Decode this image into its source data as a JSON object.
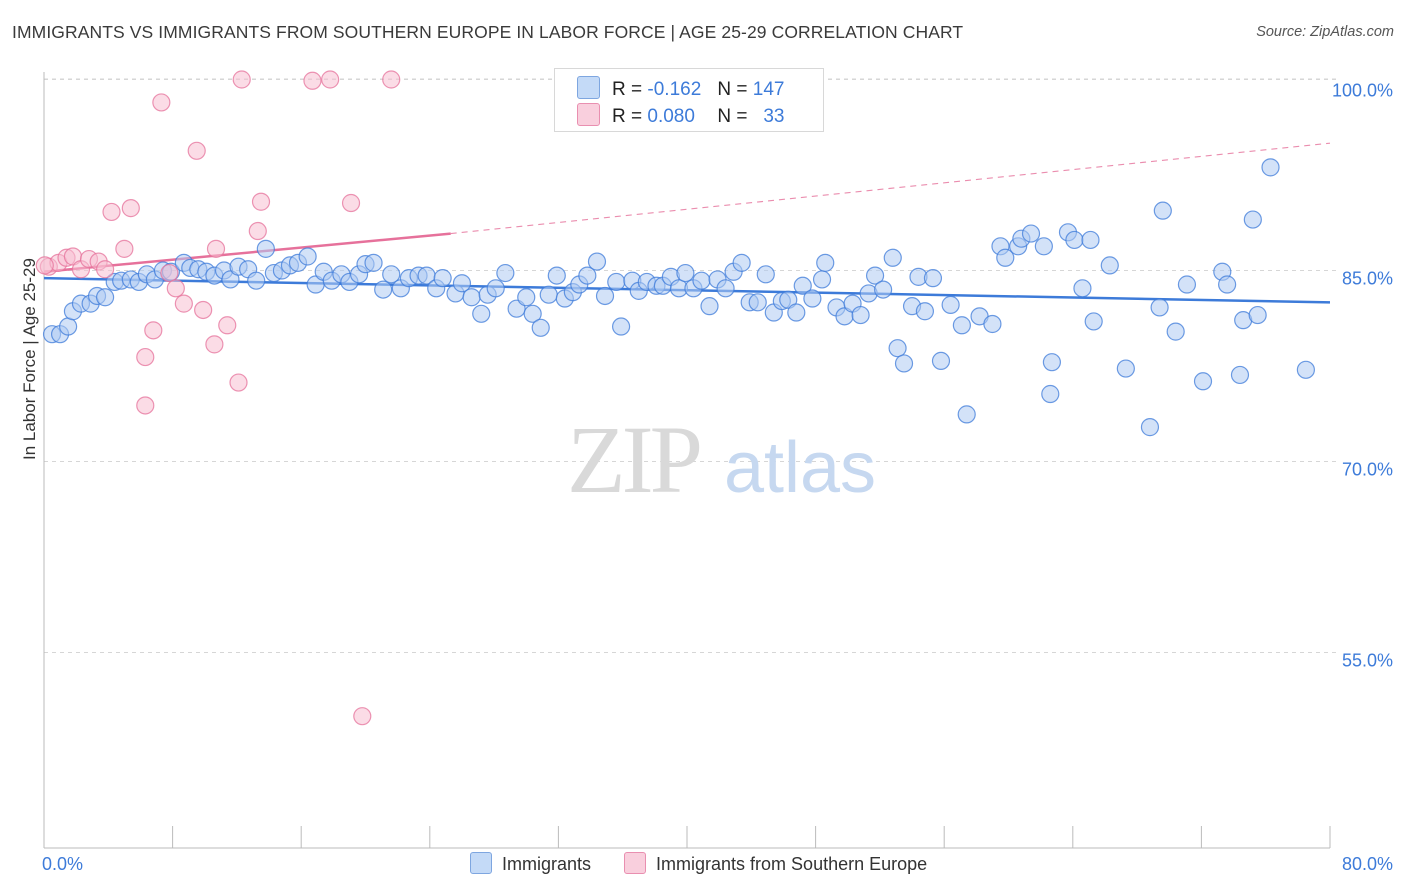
{
  "title": "IMMIGRANTS VS IMMIGRANTS FROM SOUTHERN EUROPE IN LABOR FORCE | AGE 25-29 CORRELATION CHART",
  "source": "Source: ZipAtlas.com",
  "watermark": {
    "zip": "ZIP",
    "atlas": "atlas"
  },
  "legend": {
    "rows": [
      {
        "r_label": "R =",
        "r_value": "-0.162",
        "n_label": "N =",
        "n_value": "147",
        "color": "#aecbf3"
      },
      {
        "r_label": "R =",
        "r_value": "0.080",
        "n_label": "N =",
        "n_value": "33",
        "color": "#f7bfd2"
      }
    ]
  },
  "bottom_legend": [
    "Immigrants",
    "Immigrants from Southern Europe"
  ],
  "chart_data": {
    "type": "scatter",
    "title": "IMMIGRANTS VS IMMIGRANTS FROM SOUTHERN EUROPE IN LABOR FORCE | AGE 25-29 CORRELATION CHART",
    "xlabel": "",
    "ylabel": "In Labor Force | Age 25-29",
    "xlim": [
      0,
      80
    ],
    "ylim": [
      40,
      102
    ],
    "x_tick_labels": [
      "0.0%",
      "80.0%"
    ],
    "y_ticks": [
      55,
      70,
      85,
      100
    ],
    "y_tick_labels": [
      "55.0%",
      "70.0%",
      "85.0%",
      "100.0%"
    ],
    "grid": true,
    "legend_position": "top-center",
    "series": [
      {
        "name": "Immigrants",
        "color": "#3d7bd9",
        "fill": "#aecbf3",
        "trend": {
          "x0": 0,
          "y0": 84.4,
          "x1": 80,
          "y1": 82.5
        },
        "points": [
          [
            0.5,
            80.0
          ],
          [
            1.0,
            80.0
          ],
          [
            1.5,
            80.6
          ],
          [
            1.8,
            81.8
          ],
          [
            2.3,
            82.4
          ],
          [
            2.9,
            82.4
          ],
          [
            3.3,
            83.0
          ],
          [
            3.8,
            82.9
          ],
          [
            4.4,
            84.1
          ],
          [
            4.8,
            84.2
          ],
          [
            5.4,
            84.3
          ],
          [
            5.9,
            84.1
          ],
          [
            6.4,
            84.7
          ],
          [
            6.9,
            84.3
          ],
          [
            7.4,
            85.0
          ],
          [
            7.9,
            84.9
          ],
          [
            8.7,
            85.6
          ],
          [
            9.1,
            85.2
          ],
          [
            9.6,
            85.1
          ],
          [
            10.1,
            84.9
          ],
          [
            10.6,
            84.6
          ],
          [
            11.2,
            85.0
          ],
          [
            11.6,
            84.3
          ],
          [
            12.1,
            85.3
          ],
          [
            12.7,
            85.1
          ],
          [
            13.2,
            84.2
          ],
          [
            13.8,
            86.7
          ],
          [
            14.3,
            84.8
          ],
          [
            14.8,
            85.0
          ],
          [
            15.3,
            85.4
          ],
          [
            15.8,
            85.6
          ],
          [
            16.4,
            86.1
          ],
          [
            16.9,
            83.9
          ],
          [
            17.4,
            84.9
          ],
          [
            17.9,
            84.2
          ],
          [
            18.5,
            84.7
          ],
          [
            19.0,
            84.1
          ],
          [
            19.6,
            84.7
          ],
          [
            20.0,
            85.5
          ],
          [
            20.5,
            85.6
          ],
          [
            21.1,
            83.5
          ],
          [
            21.6,
            84.7
          ],
          [
            22.2,
            83.6
          ],
          [
            22.7,
            84.4
          ],
          [
            23.3,
            84.6
          ],
          [
            23.8,
            84.6
          ],
          [
            24.4,
            83.6
          ],
          [
            24.8,
            84.4
          ],
          [
            25.6,
            83.2
          ],
          [
            26.0,
            84.0
          ],
          [
            26.6,
            82.9
          ],
          [
            27.2,
            81.6
          ],
          [
            27.6,
            83.1
          ],
          [
            28.1,
            83.6
          ],
          [
            28.7,
            84.8
          ],
          [
            29.4,
            82.0
          ],
          [
            30.0,
            82.9
          ],
          [
            30.4,
            81.6
          ],
          [
            30.9,
            80.5
          ],
          [
            31.4,
            83.1
          ],
          [
            31.9,
            84.6
          ],
          [
            32.4,
            82.8
          ],
          [
            32.9,
            83.3
          ],
          [
            33.3,
            83.9
          ],
          [
            33.8,
            84.6
          ],
          [
            34.4,
            85.7
          ],
          [
            34.9,
            83.0
          ],
          [
            35.6,
            84.1
          ],
          [
            35.9,
            80.6
          ],
          [
            36.6,
            84.2
          ],
          [
            37.0,
            83.4
          ],
          [
            37.5,
            84.1
          ],
          [
            38.1,
            83.8
          ],
          [
            38.5,
            83.8
          ],
          [
            39.0,
            84.5
          ],
          [
            39.5,
            83.6
          ],
          [
            39.9,
            84.8
          ],
          [
            40.4,
            83.6
          ],
          [
            40.9,
            84.2
          ],
          [
            41.4,
            82.2
          ],
          [
            41.9,
            84.3
          ],
          [
            42.4,
            83.6
          ],
          [
            42.9,
            84.9
          ],
          [
            43.4,
            85.6
          ],
          [
            43.9,
            82.5
          ],
          [
            44.4,
            82.5
          ],
          [
            44.9,
            84.7
          ],
          [
            45.4,
            81.7
          ],
          [
            45.9,
            82.6
          ],
          [
            46.3,
            82.7
          ],
          [
            46.8,
            81.7
          ],
          [
            47.2,
            83.8
          ],
          [
            47.8,
            82.8
          ],
          [
            48.4,
            84.3
          ],
          [
            48.6,
            85.6
          ],
          [
            49.3,
            82.1
          ],
          [
            49.8,
            81.4
          ],
          [
            50.3,
            82.4
          ],
          [
            50.8,
            81.5
          ],
          [
            51.3,
            83.2
          ],
          [
            51.7,
            84.6
          ],
          [
            52.2,
            83.5
          ],
          [
            52.8,
            86.0
          ],
          [
            53.1,
            78.9
          ],
          [
            53.5,
            77.7
          ],
          [
            54.0,
            82.2
          ],
          [
            54.4,
            84.5
          ],
          [
            54.8,
            81.8
          ],
          [
            55.3,
            84.4
          ],
          [
            55.8,
            77.9
          ],
          [
            56.4,
            82.3
          ],
          [
            57.1,
            80.7
          ],
          [
            57.4,
            73.7
          ],
          [
            58.2,
            81.4
          ],
          [
            59.0,
            80.8
          ],
          [
            59.5,
            86.9
          ],
          [
            59.8,
            86.0
          ],
          [
            60.6,
            86.9
          ],
          [
            60.8,
            87.5
          ],
          [
            61.4,
            87.9
          ],
          [
            62.2,
            86.9
          ],
          [
            62.7,
            77.8
          ],
          [
            62.6,
            75.3
          ],
          [
            63.7,
            88.0
          ],
          [
            64.1,
            87.4
          ],
          [
            64.6,
            83.6
          ],
          [
            65.1,
            87.4
          ],
          [
            65.3,
            81.0
          ],
          [
            66.3,
            85.4
          ],
          [
            67.3,
            77.3
          ],
          [
            68.8,
            72.7
          ],
          [
            69.4,
            82.1
          ],
          [
            69.6,
            89.7
          ],
          [
            70.4,
            80.2
          ],
          [
            71.1,
            83.9
          ],
          [
            72.1,
            76.3
          ],
          [
            73.3,
            84.9
          ],
          [
            73.6,
            83.9
          ],
          [
            74.4,
            76.8
          ],
          [
            74.6,
            81.1
          ],
          [
            75.2,
            89.0
          ],
          [
            75.5,
            81.5
          ],
          [
            76.3,
            93.1
          ],
          [
            78.5,
            77.2
          ]
        ]
      },
      {
        "name": "Immigrants from Southern Europe",
        "color": "#e6719b",
        "fill": "#f7bfd2",
        "trend": {
          "x0": 0,
          "y0": 84.9,
          "x1": 25.3,
          "y1": 87.9
        },
        "trend_extension": {
          "x0": 25.3,
          "y0": 87.9,
          "x1": 80,
          "y1": 95.0
        },
        "points": [
          [
            0.3,
            85.3
          ],
          [
            0.9,
            85.6
          ],
          [
            1.4,
            86.0
          ],
          [
            1.8,
            86.1
          ],
          [
            2.3,
            85.1
          ],
          [
            2.8,
            85.9
          ],
          [
            3.4,
            85.7
          ],
          [
            3.8,
            85.1
          ],
          [
            4.2,
            89.6
          ],
          [
            5.0,
            86.7
          ],
          [
            5.4,
            89.9
          ],
          [
            6.3,
            74.4
          ],
          [
            6.3,
            78.2
          ],
          [
            6.8,
            80.3
          ],
          [
            7.3,
            98.2
          ],
          [
            7.8,
            84.8
          ],
          [
            8.2,
            83.6
          ],
          [
            8.7,
            82.4
          ],
          [
            9.5,
            94.4
          ],
          [
            9.9,
            81.9
          ],
          [
            10.6,
            79.2
          ],
          [
            10.7,
            86.7
          ],
          [
            11.4,
            80.7
          ],
          [
            12.1,
            76.2
          ],
          [
            12.3,
            100.0
          ],
          [
            13.3,
            88.1
          ],
          [
            13.5,
            90.4
          ],
          [
            16.7,
            99.9
          ],
          [
            17.8,
            100.0
          ],
          [
            19.1,
            90.3
          ],
          [
            19.8,
            50.0
          ],
          [
            21.6,
            100.0
          ],
          [
            0.05,
            85.4
          ]
        ]
      }
    ]
  }
}
